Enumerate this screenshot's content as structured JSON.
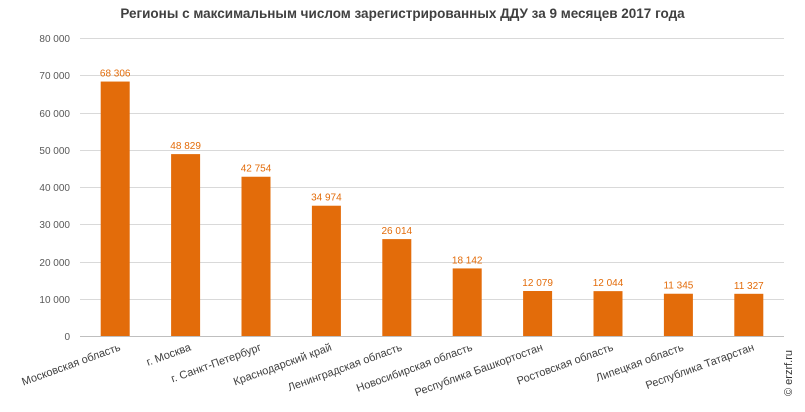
{
  "chart_data": {
    "type": "bar",
    "title": "Регионы с максимальным числом зарегистрированных ДДУ за 9 месяцев 2017 года",
    "categories": [
      "Московская область",
      "г. Москва",
      "г. Санкт-Петербург",
      "Краснодарский край",
      "Ленинградская область",
      "Новосибирская область",
      "Республика Башкортостан",
      "Ростовская область",
      "Липецкая область",
      "Республика Татарстан"
    ],
    "values": [
      68306,
      48829,
      42754,
      34974,
      26014,
      18142,
      12079,
      12044,
      11345,
      11327
    ],
    "data_labels": [
      "68 306",
      "48 829",
      "42 754",
      "34 974",
      "26 014",
      "18 142",
      "12 079",
      "12 044",
      "11 345",
      "11 327"
    ],
    "yticks": [
      "0",
      "10 000",
      "20 000",
      "30 000",
      "40 000",
      "50 000",
      "60 000",
      "70 000",
      "80 000"
    ],
    "ylim": [
      0,
      80000
    ],
    "grid": true,
    "bar_color": "#e36c0a",
    "watermark": "© erzrf.ru"
  }
}
